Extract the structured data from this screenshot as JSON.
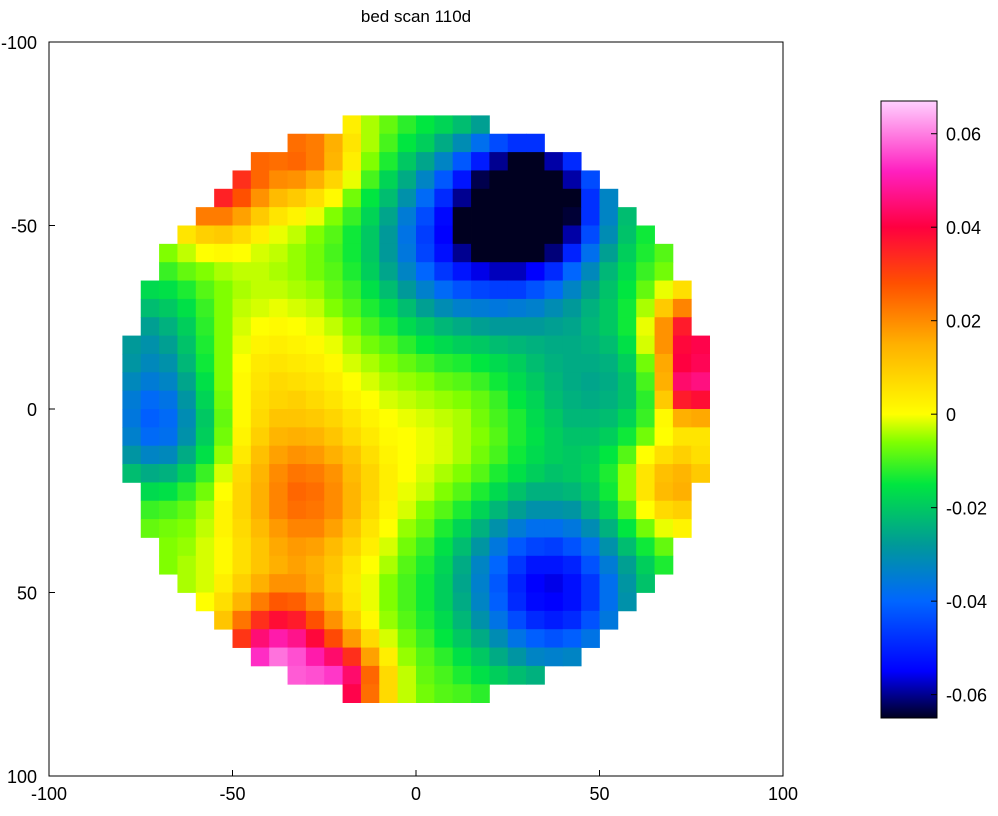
{
  "chart_data": {
    "type": "heatmap",
    "title": "bed scan 110d",
    "xlabel": "",
    "ylabel": "",
    "xlim": [
      -100,
      100
    ],
    "ylim": [
      100,
      -100
    ],
    "y_axis_inverted": true,
    "grid": false,
    "cell_size": 5,
    "x_centers_start": -77.5,
    "y_centers_start": -77.5,
    "x_ticks": [
      "-100",
      "-50",
      "0",
      "50",
      "100"
    ],
    "y_ticks": [
      "-100",
      "-50",
      "0",
      "50",
      "100"
    ],
    "x_tick_values": [
      -100,
      -50,
      0,
      50,
      100
    ],
    "y_tick_values": [
      -100,
      -50,
      0,
      50,
      100
    ],
    "colorbar": {
      "range": [
        -0.065,
        0.067
      ],
      "ticks": [
        "0.06",
        "0.04",
        "0.02",
        "0",
        "-0.02",
        "-0.04",
        "-0.06"
      ],
      "tick_values": [
        0.06,
        0.04,
        0.02,
        0,
        -0.02,
        -0.04,
        -0.06
      ],
      "colormap_stops": [
        {
          "v": -0.065,
          "color": "#000020"
        },
        {
          "v": -0.055,
          "color": "#0000ff"
        },
        {
          "v": -0.04,
          "color": "#0066ff"
        },
        {
          "v": -0.028,
          "color": "#009999"
        },
        {
          "v": -0.015,
          "color": "#00e640"
        },
        {
          "v": -0.006,
          "color": "#80ff00"
        },
        {
          "v": 0.0,
          "color": "#ffff00"
        },
        {
          "v": 0.015,
          "color": "#ffb000"
        },
        {
          "v": 0.028,
          "color": "#ff5000"
        },
        {
          "v": 0.04,
          "color": "#ff0040"
        },
        {
          "v": 0.052,
          "color": "#ff20c0"
        },
        {
          "v": 0.067,
          "color": "#ffd0ff"
        }
      ]
    },
    "values": [
      [
        null,
        null,
        null,
        null,
        null,
        null,
        null,
        null,
        null,
        null,
        null,
        null,
        null,
        null,
        null,
        null,
        null,
        null,
        null,
        null,
        null,
        null,
        null,
        null,
        null,
        null,
        null,
        null,
        null,
        null,
        null,
        null
      ],
      [
        null,
        null,
        null,
        null,
        null,
        null,
        null,
        null,
        null,
        null,
        null,
        null,
        null,
        null,
        null,
        null,
        null,
        null,
        null,
        null,
        null,
        null,
        null,
        null,
        null,
        null,
        null,
        null,
        null,
        null,
        null,
        null
      ],
      [
        null,
        null,
        null,
        null,
        null,
        null,
        null,
        null,
        null,
        null,
        null,
        null,
        null,
        null,
        null,
        null,
        null,
        null,
        null,
        null,
        null,
        null,
        null,
        null,
        null,
        null,
        null,
        null,
        null,
        null,
        null,
        null
      ],
      [
        null,
        null,
        null,
        null,
        null,
        null,
        null,
        null,
        null,
        null,
        null,
        null,
        null,
        null,
        null,
        null,
        null,
        null,
        null,
        null,
        null,
        null,
        null,
        null,
        null,
        null,
        null,
        null,
        null,
        null,
        null,
        null
      ],
      [
        null,
        null,
        null,
        null,
        null,
        null,
        null,
        null,
        null,
        null,
        null,
        null,
        null,
        null,
        null,
        null,
        null,
        null,
        null,
        null,
        null,
        null,
        null,
        null,
        null,
        null,
        null,
        null,
        null,
        null,
        null,
        null
      ],
      [
        null,
        null,
        null,
        null,
        null,
        null,
        null,
        null,
        null,
        null,
        null,
        null,
        null,
        null,
        null,
        null,
        null,
        null,
        null,
        null,
        null,
        null,
        null,
        null,
        null,
        null,
        null,
        null,
        null,
        null,
        null,
        null
      ],
      [
        null,
        null,
        null,
        null,
        null,
        null,
        null,
        null,
        null,
        null,
        null,
        null,
        null,
        null,
        null,
        null,
        null,
        null,
        null,
        null,
        null,
        null,
        null,
        null,
        null,
        null,
        null,
        null,
        null,
        null,
        null,
        null
      ],
      [
        null,
        null,
        null,
        null,
        null,
        null,
        null,
        null,
        null,
        null,
        null,
        null,
        null,
        null,
        null,
        null,
        null,
        null,
        null,
        null,
        null,
        null,
        null,
        null,
        null,
        null,
        null,
        null,
        null,
        null,
        null,
        null
      ],
      [
        null,
        null,
        null,
        null,
        null,
        null,
        null,
        null,
        null,
        null,
        null,
        null,
        null,
        null,
        null,
        null,
        null,
        null,
        null,
        null,
        null,
        null,
        null,
        null,
        null,
        null,
        null,
        null,
        null,
        null,
        null,
        null
      ],
      [
        null,
        null,
        null,
        null,
        null,
        null,
        null,
        null,
        null,
        null,
        null,
        null,
        null,
        null,
        null,
        null,
        null,
        null,
        null,
        null,
        null,
        null,
        null,
        null,
        null,
        null,
        null,
        null,
        null,
        null,
        null,
        null
      ],
      [
        null,
        null,
        null,
        null,
        null,
        null,
        null,
        null,
        null,
        null,
        null,
        null,
        null,
        null,
        null,
        null,
        null,
        null,
        null,
        null,
        null,
        null,
        null,
        null,
        null,
        null,
        null,
        null,
        null,
        null,
        null,
        null
      ],
      [
        null,
        null,
        null,
        null,
        null,
        null,
        null,
        null,
        null,
        null,
        null,
        null,
        null,
        null,
        null,
        null,
        null,
        null,
        null,
        null,
        null,
        null,
        null,
        null,
        null,
        null,
        null,
        null,
        null,
        null,
        null,
        null
      ],
      [
        null,
        null,
        null,
        null,
        null,
        null,
        null,
        null,
        null,
        null,
        null,
        null,
        null,
        null,
        null,
        null,
        null,
        null,
        null,
        null,
        null,
        null,
        null,
        null,
        null,
        null,
        null,
        null,
        null,
        null,
        null,
        null
      ],
      [
        null,
        null,
        null,
        null,
        null,
        null,
        null,
        null,
        null,
        null,
        null,
        null,
        null,
        null,
        null,
        null,
        null,
        null,
        null,
        null,
        null,
        null,
        null,
        null,
        null,
        null,
        null,
        null,
        null,
        null,
        null,
        null
      ],
      [
        null,
        null,
        null,
        null,
        null,
        null,
        null,
        null,
        null,
        null,
        null,
        null,
        null,
        null,
        null,
        null,
        null,
        null,
        null,
        null,
        null,
        null,
        null,
        null,
        null,
        null,
        null,
        null,
        null,
        null,
        null,
        null
      ],
      [
        null,
        null,
        null,
        null,
        null,
        null,
        null,
        null,
        null,
        null,
        null,
        null,
        null,
        null,
        null,
        null,
        null,
        null,
        null,
        null,
        null,
        null,
        null,
        null,
        null,
        null,
        null,
        null,
        null,
        null,
        null,
        null
      ],
      [
        null,
        null,
        null,
        null,
        null,
        null,
        null,
        null,
        null,
        null,
        null,
        null,
        null,
        null,
        null,
        null,
        null,
        null,
        null,
        null,
        null,
        null,
        null,
        null,
        null,
        null,
        null,
        null,
        null,
        null,
        null,
        null
      ],
      [
        null,
        null,
        null,
        null,
        null,
        null,
        null,
        null,
        null,
        null,
        null,
        null,
        null,
        null,
        null,
        null,
        null,
        null,
        null,
        null,
        null,
        null,
        null,
        null,
        null,
        null,
        null,
        null,
        null,
        null,
        null,
        null
      ],
      [
        null,
        null,
        null,
        null,
        null,
        null,
        null,
        null,
        null,
        null,
        null,
        null,
        null,
        null,
        null,
        null,
        null,
        null,
        null,
        null,
        null,
        null,
        null,
        null,
        null,
        null,
        null,
        null,
        null,
        null,
        null,
        null
      ],
      [
        null,
        null,
        null,
        null,
        null,
        null,
        null,
        null,
        null,
        null,
        null,
        null,
        null,
        null,
        null,
        null,
        null,
        null,
        null,
        null,
        null,
        null,
        null,
        null,
        null,
        null,
        null,
        null,
        null,
        null,
        null,
        null
      ],
      [
        null,
        null,
        null,
        null,
        null,
        null,
        null,
        null,
        null,
        null,
        null,
        null,
        null,
        null,
        null,
        null,
        null,
        null,
        null,
        null,
        null,
        null,
        null,
        null,
        null,
        null,
        null,
        null,
        null,
        null,
        null,
        null
      ],
      [
        null,
        null,
        null,
        null,
        null,
        null,
        null,
        null,
        null,
        null,
        null,
        null,
        null,
        null,
        null,
        null,
        null,
        null,
        null,
        null,
        null,
        null,
        null,
        null,
        null,
        null,
        null,
        null,
        null,
        null,
        null,
        null
      ],
      [
        null,
        null,
        null,
        null,
        null,
        null,
        null,
        null,
        null,
        null,
        null,
        null,
        null,
        null,
        null,
        null,
        null,
        null,
        null,
        null,
        null,
        null,
        null,
        null,
        null,
        null,
        null,
        null,
        null,
        null,
        null,
        null
      ],
      [
        null,
        null,
        null,
        null,
        null,
        null,
        null,
        null,
        null,
        null,
        null,
        null,
        null,
        null,
        null,
        null,
        null,
        null,
        null,
        null,
        null,
        null,
        null,
        null,
        null,
        null,
        null,
        null,
        null,
        null,
        null,
        null
      ],
      [
        null,
        null,
        null,
        null,
        null,
        null,
        null,
        null,
        null,
        null,
        null,
        null,
        null,
        null,
        null,
        null,
        null,
        null,
        null,
        null,
        null,
        null,
        null,
        null,
        null,
        null,
        null,
        null,
        null,
        null,
        null,
        null
      ],
      [
        null,
        null,
        null,
        null,
        null,
        null,
        null,
        null,
        null,
        null,
        null,
        null,
        null,
        null,
        null,
        null,
        null,
        null,
        null,
        null,
        null,
        null,
        null,
        null,
        null,
        null,
        null,
        null,
        null,
        null,
        null,
        null
      ],
      [
        null,
        null,
        null,
        null,
        null,
        null,
        null,
        null,
        null,
        null,
        null,
        null,
        null,
        null,
        null,
        null,
        null,
        null,
        null,
        null,
        null,
        null,
        null,
        null,
        null,
        null,
        null,
        null,
        null,
        null,
        null,
        null
      ],
      [
        null,
        null,
        null,
        null,
        null,
        null,
        null,
        null,
        null,
        null,
        null,
        null,
        null,
        null,
        null,
        null,
        null,
        null,
        null,
        null,
        null,
        null,
        null,
        null,
        null,
        null,
        null,
        null,
        null,
        null,
        null,
        null
      ],
      [
        null,
        null,
        null,
        null,
        null,
        null,
        null,
        null,
        null,
        null,
        null,
        null,
        null,
        null,
        null,
        null,
        null,
        null,
        null,
        null,
        null,
        null,
        null,
        null,
        null,
        null,
        null,
        null,
        null,
        null,
        null,
        null
      ],
      [
        null,
        null,
        null,
        null,
        null,
        null,
        null,
        null,
        null,
        null,
        null,
        null,
        null,
        null,
        null,
        null,
        null,
        null,
        null,
        null,
        null,
        null,
        null,
        null,
        null,
        null,
        null,
        null,
        null,
        null,
        null,
        null
      ],
      [
        null,
        null,
        null,
        null,
        null,
        null,
        null,
        null,
        null,
        null,
        null,
        null,
        null,
        null,
        null,
        null,
        null,
        null,
        null,
        null,
        null,
        null,
        null,
        null,
        null,
        null,
        null,
        null,
        null,
        null,
        null,
        null
      ],
      [
        null,
        null,
        null,
        null,
        null,
        null,
        null,
        null,
        null,
        null,
        null,
        null,
        null,
        null,
        null,
        null,
        null,
        null,
        null,
        null,
        null,
        null,
        null,
        null,
        null,
        null,
        null,
        null,
        null,
        null,
        null,
        null
      ]
    ]
  }
}
